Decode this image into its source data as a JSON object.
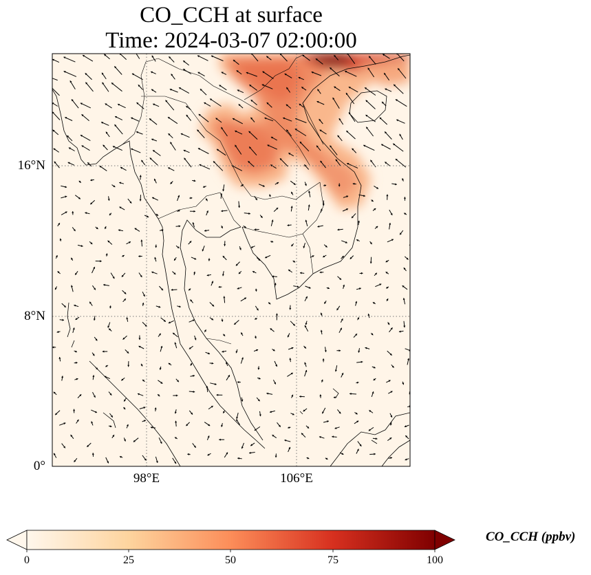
{
  "title": "CO_CCH at surface",
  "subtitle": "Time: 2024-03-07 02:00:00",
  "lat_ticks": [
    {
      "value": 16,
      "label": "16°N"
    },
    {
      "value": 8,
      "label": "8°N"
    },
    {
      "value": 0,
      "label": "0°"
    }
  ],
  "lon_ticks": [
    {
      "value": 98,
      "label": "98°E"
    },
    {
      "value": 106,
      "label": "106°E"
    }
  ],
  "map_extent": {
    "lon": [
      93,
      112
    ],
    "lat": [
      0,
      22
    ]
  },
  "gridlines": "dotted",
  "colorbar": {
    "label": "CO_CCH (ppbv)",
    "colormap": "OrRd",
    "range": [
      0,
      100
    ],
    "extend": "both",
    "ticks": [
      {
        "value": 0,
        "label": "0"
      },
      {
        "value": 25,
        "label": "25"
      },
      {
        "value": 50,
        "label": "50"
      },
      {
        "value": 75,
        "label": "75"
      },
      {
        "value": 100,
        "label": "100"
      }
    ],
    "stops": [
      "#fff7ec",
      "#fdd49e",
      "#fc8d59",
      "#d7301f",
      "#7f0000"
    ]
  },
  "concentration_hotspots": [
    {
      "lon": 108.5,
      "lat": 21.7,
      "value": 100
    },
    {
      "lon": 105.5,
      "lat": 20.5,
      "value": 60
    },
    {
      "lon": 103.0,
      "lat": 17.5,
      "value": 55
    },
    {
      "lon": 106.5,
      "lat": 17.0,
      "value": 55
    },
    {
      "lon": 107.5,
      "lat": 15.0,
      "value": 45
    }
  ],
  "features": {
    "coastline": "coastline",
    "borders": "country-borders",
    "wind_vectors": "wind-vector-arrows"
  }
}
